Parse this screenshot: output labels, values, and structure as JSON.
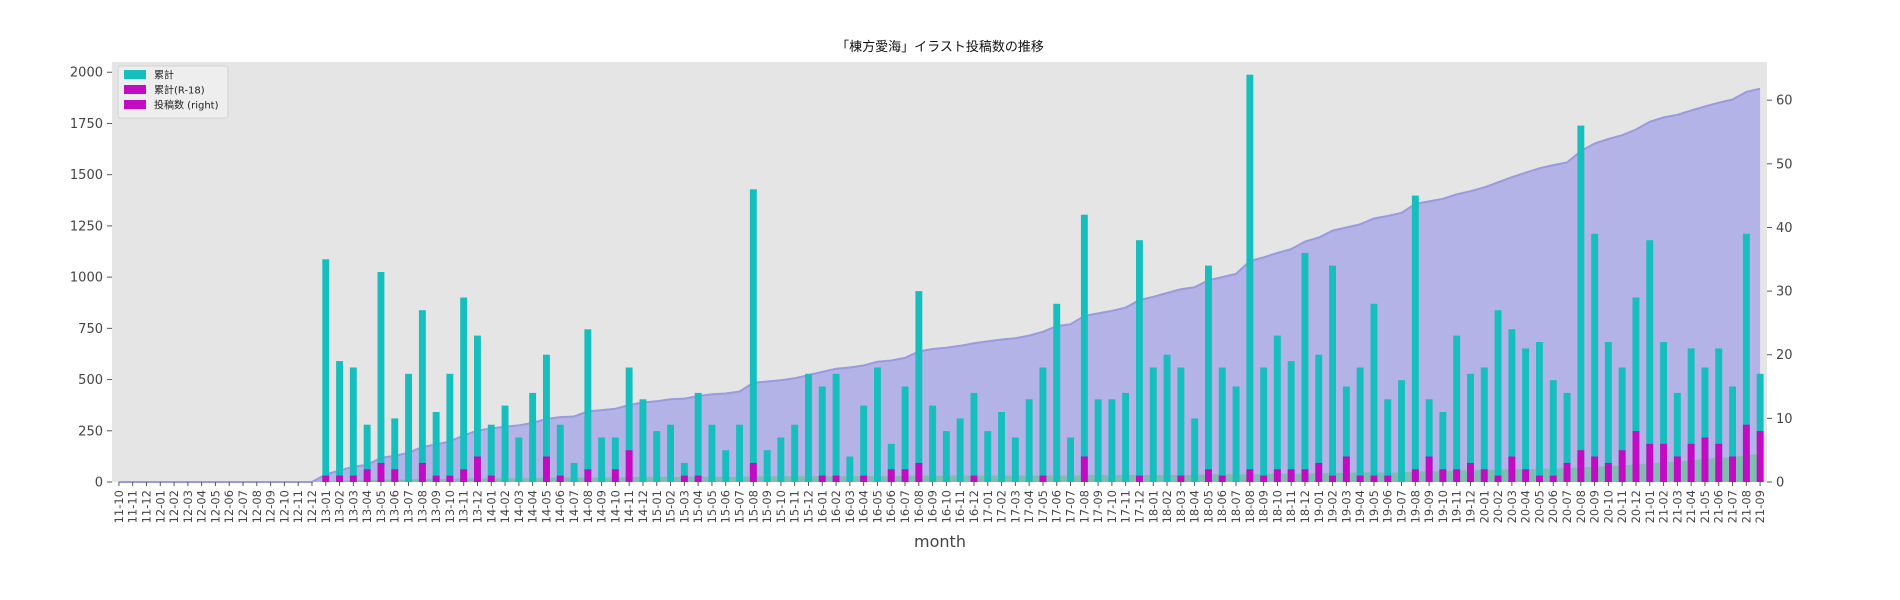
{
  "chart_data": {
    "type": "bar",
    "title": "「棟方愛海」イラスト投稿数の推移",
    "xlabel": "month",
    "ylabel": "",
    "ylim": [
      0,
      2050
    ],
    "y2lim": [
      0,
      66
    ],
    "yticks": [
      0,
      250,
      500,
      750,
      1000,
      1250,
      1500,
      1750,
      2000
    ],
    "y2ticks": [
      0,
      10,
      20,
      30,
      40,
      50,
      60
    ],
    "grid": false,
    "legend_position": "top-left",
    "colors": {
      "total_bar": "#17bebe",
      "r18_bar": "#c20bc2",
      "posts_bar_legend": "#c20bc2",
      "cumulative_area": "#b3b3e8",
      "cumulative_line": "#9a9ae0",
      "r18_area": "#6fbf9e",
      "plot_bg": "#e5e5e5"
    },
    "legend": [
      "累計",
      "累計(R-18)",
      "投稿数 (right)"
    ],
    "categories": [
      "11-10",
      "11-11",
      "11-12",
      "12-01",
      "12-02",
      "12-03",
      "12-04",
      "12-05",
      "12-06",
      "12-07",
      "12-08",
      "12-09",
      "12-10",
      "12-11",
      "12-12",
      "13-01",
      "13-02",
      "13-03",
      "13-04",
      "13-05",
      "13-06",
      "13-07",
      "13-08",
      "13-09",
      "13-10",
      "13-11",
      "13-12",
      "14-01",
      "14-02",
      "14-03",
      "14-04",
      "14-05",
      "14-06",
      "14-07",
      "14-08",
      "14-09",
      "14-10",
      "14-11",
      "14-12",
      "15-01",
      "15-02",
      "15-03",
      "15-04",
      "15-05",
      "15-06",
      "15-07",
      "15-08",
      "15-09",
      "15-10",
      "15-11",
      "15-12",
      "16-01",
      "16-02",
      "16-03",
      "16-04",
      "16-05",
      "16-06",
      "16-07",
      "16-08",
      "16-09",
      "16-10",
      "16-11",
      "16-12",
      "17-01",
      "17-02",
      "17-03",
      "17-04",
      "17-05",
      "17-06",
      "17-07",
      "17-08",
      "17-09",
      "17-10",
      "17-11",
      "17-12",
      "18-01",
      "18-02",
      "18-03",
      "18-04",
      "18-05",
      "18-06",
      "18-07",
      "18-08",
      "18-09",
      "18-10",
      "18-11",
      "18-12",
      "19-01",
      "19-02",
      "19-03",
      "19-04",
      "19-05",
      "19-06",
      "19-07",
      "19-08",
      "19-09",
      "19-10",
      "19-11",
      "19-12",
      "20-01",
      "20-02",
      "20-03",
      "20-04",
      "20-05",
      "20-06",
      "20-07",
      "20-08",
      "20-09",
      "20-10",
      "20-11",
      "20-12",
      "21-01",
      "21-02",
      "21-03",
      "21-04",
      "21-05",
      "21-06",
      "21-07",
      "21-08",
      "21-09"
    ],
    "series": [
      {
        "name": "累計",
        "axis": "left",
        "values": [
          0,
          0,
          0,
          0,
          0,
          0,
          0,
          0,
          0,
          0,
          0,
          0,
          0,
          0,
          0,
          35,
          19,
          18,
          9,
          33,
          10,
          17,
          27,
          11,
          17,
          29,
          23,
          9,
          12,
          7,
          14,
          20,
          9,
          3,
          24,
          7,
          7,
          18,
          13,
          8,
          9,
          3,
          14,
          9,
          5,
          9,
          46,
          5,
          7,
          9,
          17,
          15,
          17,
          4,
          12,
          18,
          6,
          15,
          30,
          12,
          8,
          10,
          14,
          8,
          11,
          7,
          13,
          18,
          28,
          7,
          42,
          13,
          13,
          14,
          38,
          18,
          20,
          18,
          10,
          34,
          18,
          15,
          64,
          18,
          23,
          19,
          36,
          20,
          34,
          15,
          18,
          28,
          13,
          16,
          45,
          13,
          11,
          23,
          17,
          18,
          27,
          24,
          21,
          22,
          16,
          14,
          56,
          39,
          22,
          18,
          29,
          38,
          22,
          14,
          21,
          18,
          21,
          15,
          39,
          17
        ]
      },
      {
        "name": "累計(R-18)",
        "axis": "left",
        "values": [
          0,
          0,
          0,
          0,
          0,
          0,
          0,
          0,
          0,
          0,
          0,
          0,
          0,
          0,
          0,
          1,
          1,
          1,
          2,
          3,
          2,
          0,
          3,
          1,
          1,
          2,
          4,
          1,
          0,
          0,
          0,
          4,
          1,
          0,
          2,
          0,
          2,
          5,
          0,
          0,
          0,
          1,
          1,
          0,
          0,
          0,
          3,
          0,
          0,
          0,
          0,
          1,
          1,
          0,
          1,
          0,
          2,
          2,
          3,
          0,
          0,
          0,
          1,
          0,
          0,
          0,
          0,
          1,
          0,
          0,
          4,
          0,
          0,
          0,
          1,
          0,
          0,
          1,
          0,
          2,
          1,
          0,
          2,
          1,
          2,
          2,
          2,
          3,
          1,
          4,
          1,
          1,
          1,
          0,
          2,
          4,
          2,
          2,
          3,
          2,
          1,
          4,
          2,
          1,
          1,
          3,
          5,
          4,
          3,
          5,
          8,
          6,
          6,
          4,
          6,
          7,
          6,
          4,
          9,
          8
        ]
      },
      {
        "name": "cumulative_illustrations",
        "axis": "right",
        "values": [
          0,
          0,
          0,
          0,
          0,
          0,
          0,
          0,
          0,
          0,
          0,
          0,
          0,
          0,
          0,
          1.2,
          1.8,
          2.4,
          2.7,
          3.8,
          4.1,
          4.6,
          5.5,
          5.9,
          6.4,
          7.3,
          8.1,
          8.4,
          8.7,
          8.9,
          9.3,
          9.9,
          10.2,
          10.3,
          11.1,
          11.3,
          11.5,
          12.1,
          12.5,
          12.7,
          13.0,
          13.1,
          13.5,
          13.8,
          13.9,
          14.2,
          15.6,
          15.8,
          16.0,
          16.3,
          16.8,
          17.3,
          17.8,
          18.0,
          18.3,
          18.9,
          19.1,
          19.5,
          20.5,
          20.9,
          21.1,
          21.4,
          21.8,
          22.1,
          22.4,
          22.6,
          23.0,
          23.6,
          24.5,
          24.8,
          26.1,
          26.5,
          26.9,
          27.4,
          28.6,
          29.1,
          29.7,
          30.3,
          30.6,
          31.7,
          32.2,
          32.7,
          34.7,
          35.3,
          36.0,
          36.6,
          37.8,
          38.4,
          39.5,
          40.0,
          40.5,
          41.4,
          41.8,
          42.3,
          43.7,
          44.1,
          44.5,
          45.2,
          45.7,
          46.3,
          47.1,
          47.9,
          48.6,
          49.3,
          49.8,
          50.2,
          52.0,
          53.2,
          53.9,
          54.5,
          55.4,
          56.6,
          57.3,
          57.7,
          58.4,
          59.0,
          59.6,
          60.1,
          61.3,
          61.8
        ]
      },
      {
        "name": "cumulative_r18",
        "axis": "right",
        "values": [
          0,
          0,
          0,
          0,
          0,
          0,
          0,
          0,
          0,
          0,
          0,
          0,
          0,
          0,
          0,
          0.1,
          0.2,
          0.3,
          0.3,
          0.4,
          0.4,
          0.4,
          0.5,
          0.5,
          0.5,
          0.6,
          0.6,
          0.6,
          0.6,
          0.6,
          0.6,
          0.7,
          0.7,
          0.7,
          0.7,
          0.7,
          0.7,
          0.8,
          0.8,
          0.8,
          0.8,
          0.8,
          0.8,
          0.8,
          0.8,
          0.8,
          0.9,
          0.9,
          0.9,
          0.9,
          0.9,
          0.9,
          0.9,
          0.9,
          0.9,
          0.9,
          0.9,
          1.0,
          1.0,
          1.0,
          1.0,
          1.0,
          1.0,
          1.0,
          1.0,
          1.0,
          1.0,
          1.0,
          1.0,
          1.0,
          1.1,
          1.1,
          1.1,
          1.1,
          1.1,
          1.1,
          1.1,
          1.1,
          1.1,
          1.2,
          1.2,
          1.2,
          1.2,
          1.2,
          1.3,
          1.3,
          1.3,
          1.4,
          1.4,
          1.5,
          1.5,
          1.5,
          1.5,
          1.5,
          1.6,
          1.7,
          1.7,
          1.8,
          1.8,
          1.9,
          1.9,
          2.0,
          2.0,
          2.1,
          2.1,
          2.2,
          2.3,
          2.4,
          2.5,
          2.6,
          2.8,
          2.9,
          3.1,
          3.2,
          3.4,
          3.6,
          3.8,
          3.9,
          4.2,
          4.4
        ]
      }
    ]
  }
}
